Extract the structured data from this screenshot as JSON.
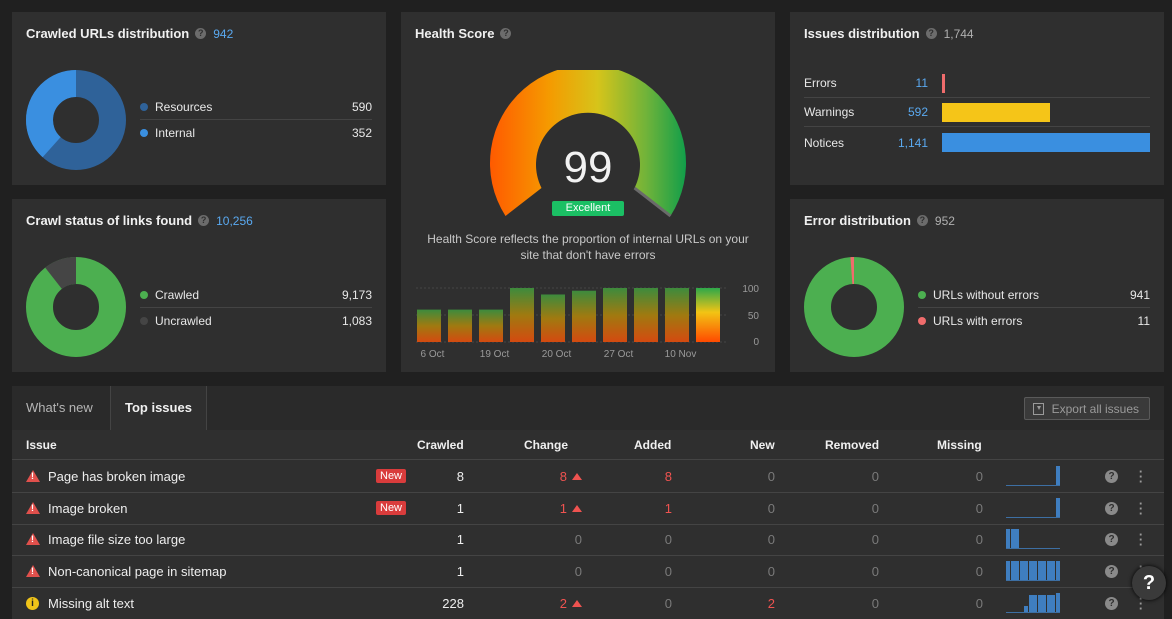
{
  "crawled_urls": {
    "title": "Crawled URLs distribution",
    "count": "942",
    "items": [
      {
        "label": "Resources",
        "value": "590",
        "color": "#2f6299"
      },
      {
        "label": "Internal",
        "value": "352",
        "color": "#3a8fe0"
      }
    ]
  },
  "crawl_status": {
    "title": "Crawl status of links found",
    "count": "10,256",
    "items": [
      {
        "label": "Crawled",
        "value": "9,173",
        "color": "#4caf50"
      },
      {
        "label": "Uncrawled",
        "value": "1,083",
        "color": "#454545"
      }
    ]
  },
  "health": {
    "title": "Health Score",
    "score": "99",
    "badge": "Excellent",
    "description_line1": "Health Score reflects the proportion of internal URLs on your",
    "description_line2": "site that don't have errors",
    "chart": {
      "y_ticks": [
        "100",
        "50",
        "0"
      ],
      "x_ticks": [
        "6 Oct",
        "19 Oct",
        "20 Oct",
        "27 Oct",
        "10 Nov"
      ],
      "values": [
        60,
        60,
        60,
        100,
        88,
        95,
        100,
        100,
        100,
        100
      ],
      "ylim": [
        0,
        100
      ]
    }
  },
  "issues_distribution": {
    "title": "Issues distribution",
    "count": "1,744",
    "rows": [
      {
        "label": "Errors",
        "value": "11",
        "color": "#ef6c6c",
        "fraction": 0.01
      },
      {
        "label": "Warnings",
        "value": "592",
        "color": "#f5c518",
        "fraction": 0.52
      },
      {
        "label": "Notices",
        "value": "1,141",
        "color": "#3a8fe0",
        "fraction": 1.0
      }
    ]
  },
  "error_distribution": {
    "title": "Error distribution",
    "count": "952",
    "items": [
      {
        "label": "URLs without errors",
        "value": "941",
        "color": "#4caf50"
      },
      {
        "label": "URLs with errors",
        "value": "11",
        "color": "#ef6c6c"
      }
    ]
  },
  "tabs": [
    {
      "label": "What's new"
    },
    {
      "label": "Top issues"
    }
  ],
  "export_label": "Export all issues",
  "table": {
    "headers": {
      "issue": "Issue",
      "crawled": "Crawled",
      "change": "Change",
      "added": "Added",
      "new": "New",
      "removed": "Removed",
      "missing": "Missing"
    },
    "new_badge": "New",
    "rows": [
      {
        "severity": "error",
        "name": "Page has broken image",
        "is_new": true,
        "crawled": "8",
        "change": "8",
        "change_up": true,
        "added": "8",
        "new": "0",
        "removed": "0",
        "missing": "0",
        "spark": [
          0,
          0,
          0,
          0,
          0,
          0,
          0,
          0,
          0,
          0,
          0,
          1
        ]
      },
      {
        "severity": "error",
        "name": "Image broken",
        "is_new": true,
        "crawled": "1",
        "change": "1",
        "change_up": true,
        "added": "1",
        "new": "0",
        "removed": "0",
        "missing": "0",
        "spark": [
          0,
          0,
          0,
          0,
          0,
          0,
          0,
          0,
          0,
          0,
          0,
          1
        ]
      },
      {
        "severity": "error",
        "name": "Image file size too large",
        "is_new": false,
        "crawled": "1",
        "change": "0",
        "change_up": false,
        "added": "0",
        "new": "0",
        "removed": "0",
        "missing": "0",
        "spark": [
          1,
          1,
          1,
          0,
          0,
          0,
          0,
          0,
          0,
          0,
          0,
          0
        ]
      },
      {
        "severity": "error",
        "name": "Non-canonical page in sitemap",
        "is_new": false,
        "crawled": "1",
        "change": "0",
        "change_up": false,
        "added": "0",
        "new": "0",
        "removed": "0",
        "missing": "0",
        "spark": [
          1,
          1,
          1,
          1,
          1,
          1,
          1,
          1,
          1,
          1,
          1,
          1
        ]
      },
      {
        "severity": "info",
        "name": "Missing alt text",
        "is_new": false,
        "crawled": "228",
        "change": "2",
        "change_up": true,
        "added": "0",
        "new": "2",
        "removed": "0",
        "missing": "0",
        "spark": [
          0,
          0,
          0,
          0,
          0.3,
          0.9,
          0.9,
          0.9,
          0.9,
          0.9,
          0.9,
          1
        ]
      }
    ]
  },
  "help_fab": "?"
}
